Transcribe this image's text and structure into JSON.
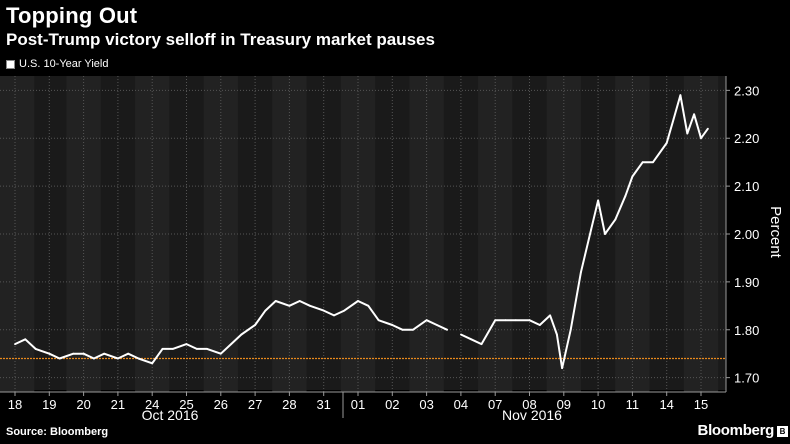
{
  "chart_data": {
    "type": "line",
    "title": "Topping Out",
    "subtitle": "Post-Trump victory selloff in Treasury market pauses",
    "ylabel": "Percent",
    "ylim": [
      1.67,
      2.33
    ],
    "yticks": [
      "1.70",
      "1.80",
      "1.90",
      "2.00",
      "2.10",
      "2.20",
      "2.30"
    ],
    "xtick_labels": [
      "18",
      "19",
      "20",
      "21",
      "24",
      "25",
      "26",
      "27",
      "28",
      "31",
      "01",
      "02",
      "03",
      "04",
      "07",
      "08",
      "09",
      "10",
      "11",
      "14",
      "15"
    ],
    "month_labels": [
      "Oct 2016",
      "Nov 2016"
    ],
    "reference_line": {
      "value": 1.74,
      "color": "#e8891c"
    },
    "grid": true,
    "legend_position": "top-left",
    "series": [
      {
        "name": "U.S. 10-Year Yield",
        "color": "#ffffff",
        "points": [
          [
            0.0,
            1.77
          ],
          [
            0.3,
            1.78
          ],
          [
            0.6,
            1.76
          ],
          [
            1.0,
            1.75
          ],
          [
            1.3,
            1.74
          ],
          [
            1.7,
            1.75
          ],
          [
            2.0,
            1.75
          ],
          [
            2.3,
            1.74
          ],
          [
            2.6,
            1.75
          ],
          [
            3.0,
            1.74
          ],
          [
            3.3,
            1.75
          ],
          [
            3.6,
            1.74
          ],
          [
            4.0,
            1.73
          ],
          [
            4.3,
            1.76
          ],
          [
            4.6,
            1.76
          ],
          [
            5.0,
            1.77
          ],
          [
            5.3,
            1.76
          ],
          [
            5.6,
            1.76
          ],
          [
            6.0,
            1.75
          ],
          [
            6.3,
            1.77
          ],
          [
            6.6,
            1.79
          ],
          [
            7.0,
            1.81
          ],
          [
            7.3,
            1.84
          ],
          [
            7.6,
            1.86
          ],
          [
            8.0,
            1.85
          ],
          [
            8.3,
            1.86
          ],
          [
            8.6,
            1.85
          ],
          [
            9.0,
            1.84
          ],
          [
            9.3,
            1.83
          ],
          [
            9.6,
            1.84
          ],
          [
            10.0,
            1.86
          ],
          [
            10.3,
            1.85
          ],
          [
            10.6,
            1.82
          ],
          [
            11.0,
            1.81
          ],
          [
            11.3,
            1.8
          ],
          [
            11.6,
            1.8
          ],
          [
            12.0,
            1.82
          ],
          [
            12.3,
            1.81
          ],
          [
            12.6,
            1.8
          ],
          [
            13.0,
            1.79
          ],
          [
            13.3,
            1.78
          ],
          [
            13.6,
            1.77
          ],
          [
            14.0,
            1.82
          ],
          [
            14.3,
            1.82
          ],
          [
            14.6,
            1.82
          ],
          [
            15.0,
            1.82
          ],
          [
            15.3,
            1.81
          ],
          [
            15.6,
            1.83
          ],
          [
            15.8,
            1.79
          ],
          [
            15.95,
            1.72
          ],
          [
            16.2,
            1.8
          ],
          [
            16.5,
            1.92
          ],
          [
            16.8,
            2.01
          ],
          [
            17.0,
            2.07
          ],
          [
            17.2,
            2.0
          ],
          [
            17.5,
            2.03
          ],
          [
            17.8,
            2.08
          ],
          [
            18.0,
            2.12
          ],
          [
            18.3,
            2.15
          ],
          [
            18.6,
            2.15
          ],
          [
            19.0,
            2.19
          ],
          [
            19.2,
            2.24
          ],
          [
            19.4,
            2.29
          ],
          [
            19.6,
            2.21
          ],
          [
            19.8,
            2.25
          ],
          [
            20.0,
            2.2
          ],
          [
            20.2,
            2.22
          ]
        ],
        "gaps": [
          13.0
        ]
      }
    ]
  },
  "legend": {
    "label": "U.S. 10-Year Yield"
  },
  "footer": {
    "source": "Source: Bloomberg",
    "brand": "Bloomberg"
  }
}
